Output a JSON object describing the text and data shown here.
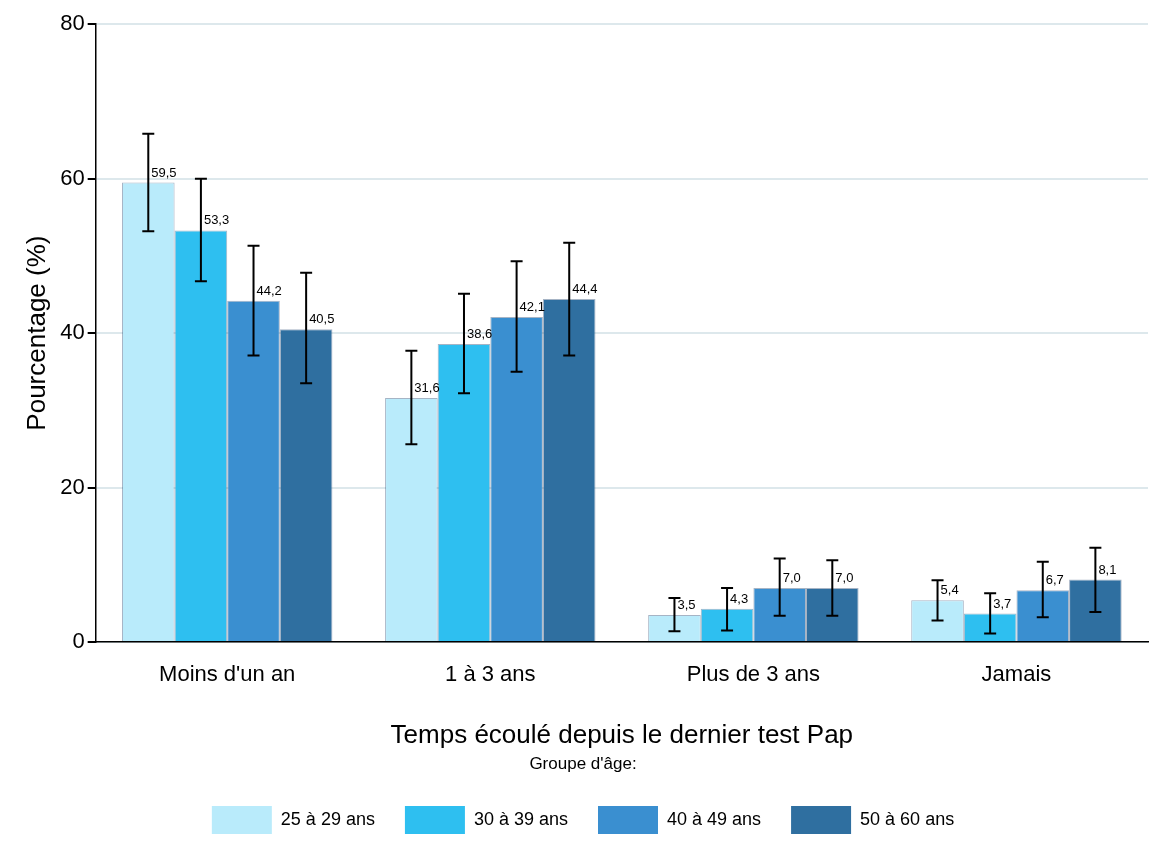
{
  "chart_data": {
    "type": "bar",
    "categories": [
      "Moins d'un an",
      "1 à 3 ans",
      "Plus de 3 ans",
      "Jamais"
    ],
    "xlabel": "Temps écoulé depuis le dernier test Pap",
    "ylabel": "Pourcentage (%)",
    "ylim": [
      0,
      80
    ],
    "yticks": [
      0,
      20,
      40,
      60,
      80
    ],
    "grid": "y",
    "legend": "bottom",
    "legend_title": "Groupe d'âge:",
    "data_labels": true,
    "series": [
      {
        "name": "25 à 29 ans",
        "color": "#b9ebfb",
        "values": [
          59.5,
          31.6,
          3.5,
          5.4
        ],
        "errors": [
          [
            53.2,
            65.8
          ],
          [
            25.6,
            37.7
          ],
          [
            1.4,
            5.7
          ],
          [
            2.8,
            8.0
          ]
        ],
        "value_labels": [
          "59,5",
          "31,6",
          "3,5",
          "5,4"
        ]
      },
      {
        "name": "30 à 39 ans",
        "color": "#2ebff0",
        "values": [
          53.3,
          38.6,
          4.3,
          3.7
        ],
        "errors": [
          [
            46.7,
            60.0
          ],
          [
            32.2,
            45.1
          ],
          [
            1.5,
            7.0
          ],
          [
            1.1,
            6.3
          ]
        ],
        "value_labels": [
          "53,3",
          "38,6",
          "4,3",
          "3,7"
        ]
      },
      {
        "name": "40 à 49 ans",
        "color": "#3a8fd0",
        "values": [
          44.2,
          42.1,
          7.0,
          6.7
        ],
        "errors": [
          [
            37.1,
            51.3
          ],
          [
            35.0,
            49.3
          ],
          [
            3.4,
            10.8
          ],
          [
            3.2,
            10.4
          ]
        ],
        "value_labels": [
          "44,2",
          "42,1",
          "7,0",
          "6,7"
        ]
      },
      {
        "name": "50 à 60 ans",
        "color": "#2f6fa0",
        "values": [
          40.5,
          44.4,
          7.0,
          8.1
        ],
        "errors": [
          [
            33.5,
            47.8
          ],
          [
            37.1,
            51.7
          ],
          [
            3.4,
            10.6
          ],
          [
            3.9,
            12.2
          ]
        ],
        "value_labels": [
          "40,5",
          "44,4",
          "7,0",
          "8,1"
        ]
      }
    ]
  }
}
